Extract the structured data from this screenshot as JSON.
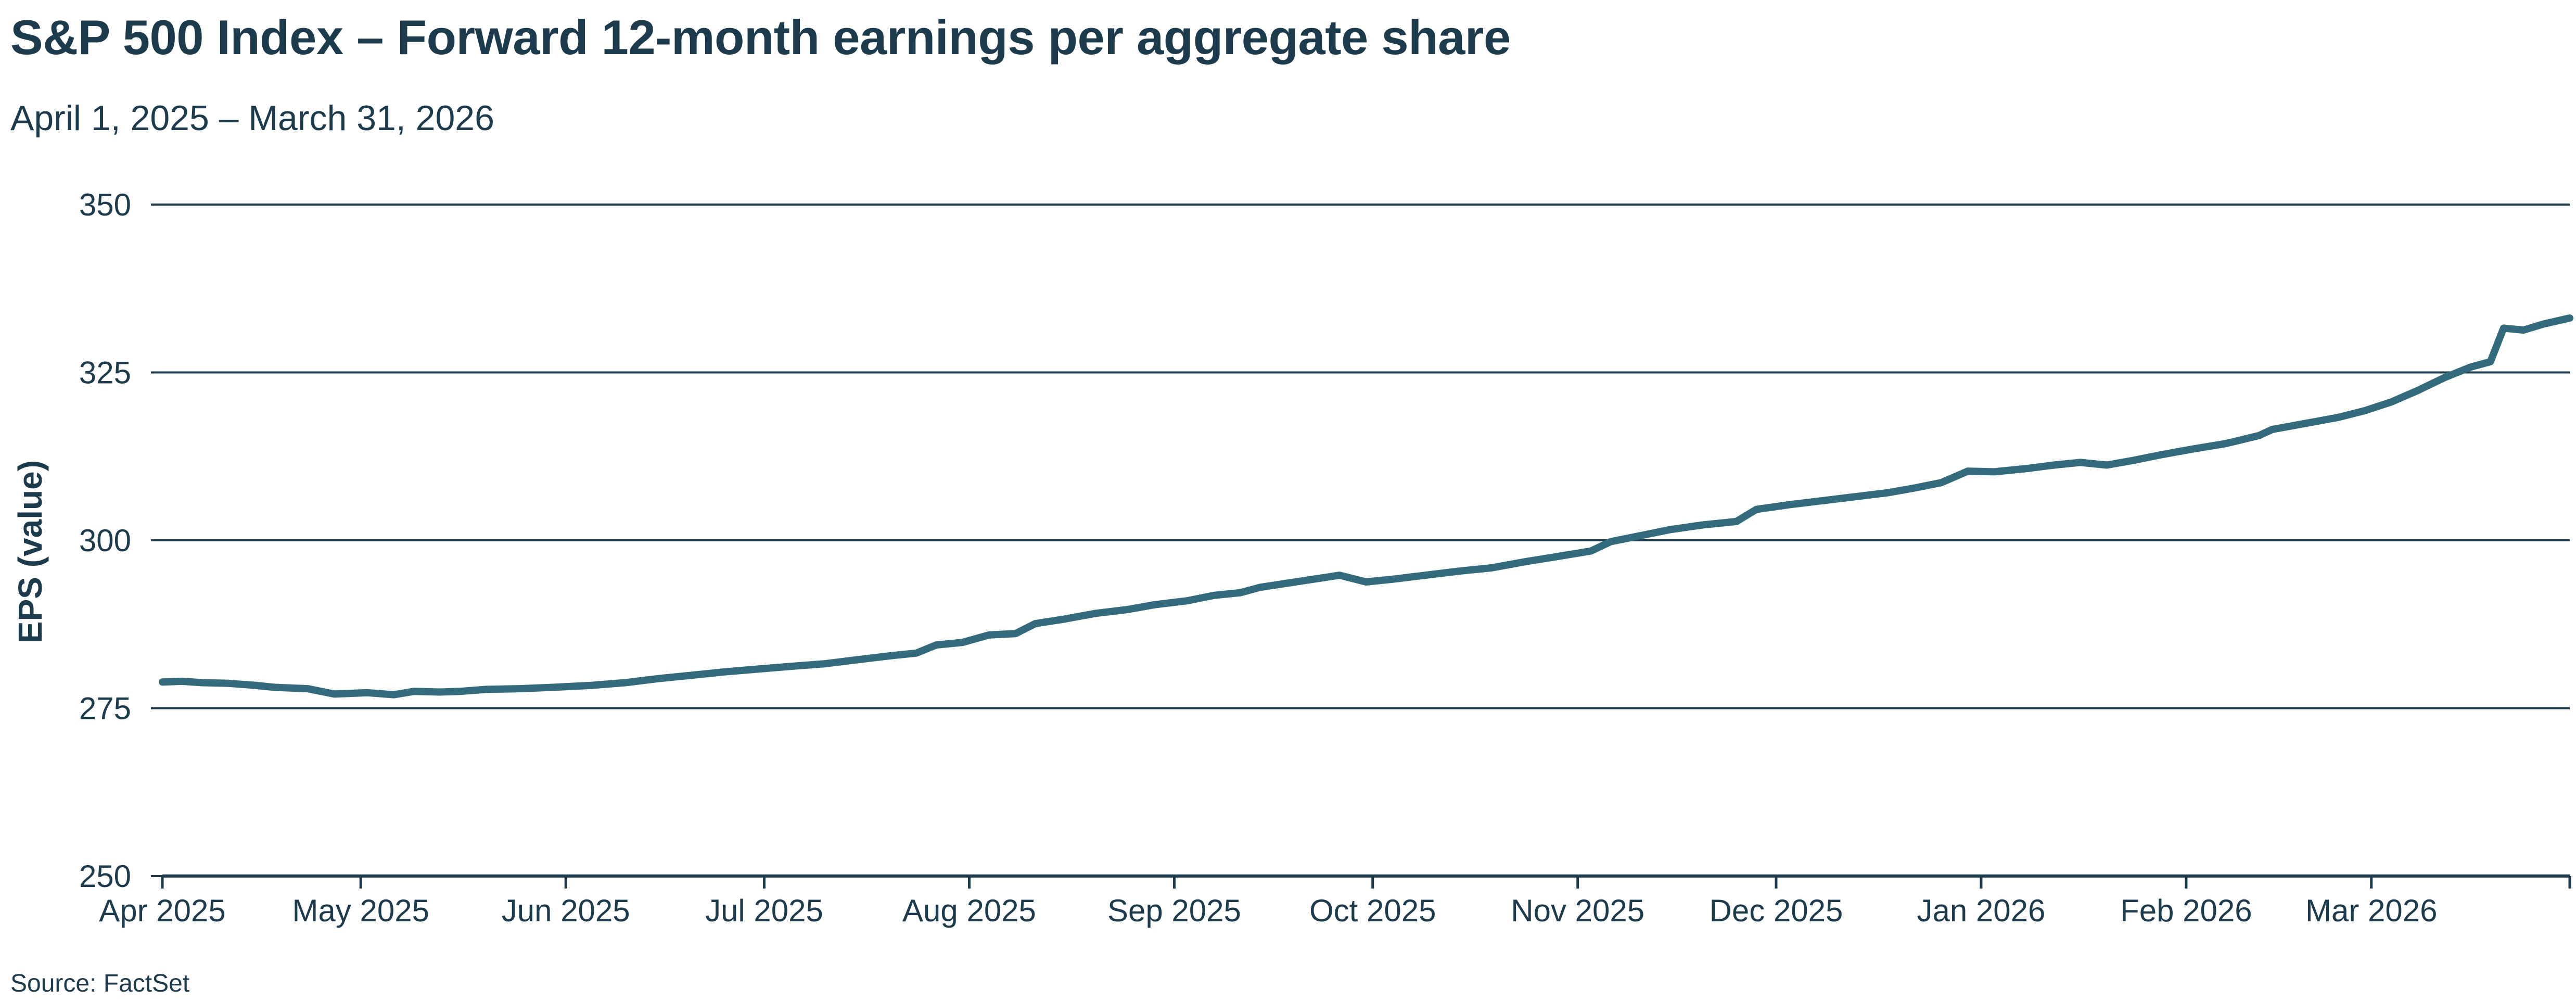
{
  "chart_data": {
    "type": "line",
    "title": "S&P 500 Index – Forward 12-month earnings per aggregate share",
    "subtitle": "April 1, 2025 – March 31, 2026",
    "ylabel": "EPS (value)",
    "xlabel": "",
    "source": "Source: FactSet",
    "ylim": [
      250,
      350
    ],
    "yticks": [
      "250",
      "275",
      "300",
      "325",
      "350"
    ],
    "xlim": [
      "2025-04-01",
      "2026-03-31"
    ],
    "xticks": [
      {
        "date": "2025-04-01",
        "label": "Apr 2025"
      },
      {
        "date": "2025-05-01",
        "label": "May 2025"
      },
      {
        "date": "2025-06-01",
        "label": "Jun 2025"
      },
      {
        "date": "2025-07-01",
        "label": "Jul 2025"
      },
      {
        "date": "2025-08-01",
        "label": "Aug 2025"
      },
      {
        "date": "2025-09-01",
        "label": "Sep 2025"
      },
      {
        "date": "2025-10-01",
        "label": "Oct 2025"
      },
      {
        "date": "2025-11-01",
        "label": "Nov 2025"
      },
      {
        "date": "2025-12-01",
        "label": "Dec 2025"
      },
      {
        "date": "2026-01-01",
        "label": "Jan 2026"
      },
      {
        "date": "2026-02-01",
        "label": "Feb 2026"
      },
      {
        "date": "2026-03-01",
        "label": "Mar 2026"
      }
    ],
    "grid": "horizontal",
    "colors": {
      "line": "#336b7c",
      "grid": "#1c3b4d",
      "text": "#1c3b4d"
    },
    "series": [
      {
        "points": [
          [
            "2025-04-01",
            278.9
          ],
          [
            "2025-04-04",
            279.0
          ],
          [
            "2025-04-07",
            278.8
          ],
          [
            "2025-04-11",
            278.7
          ],
          [
            "2025-04-15",
            278.4
          ],
          [
            "2025-04-18",
            278.1
          ],
          [
            "2025-04-23",
            277.9
          ],
          [
            "2025-04-27",
            277.1
          ],
          [
            "2025-05-02",
            277.3
          ],
          [
            "2025-05-06",
            277.0
          ],
          [
            "2025-05-09",
            277.5
          ],
          [
            "2025-05-13",
            277.4
          ],
          [
            "2025-05-16",
            277.5
          ],
          [
            "2025-05-20",
            277.8
          ],
          [
            "2025-05-25",
            277.9
          ],
          [
            "2025-05-30",
            278.1
          ],
          [
            "2025-06-05",
            278.4
          ],
          [
            "2025-06-10",
            278.8
          ],
          [
            "2025-06-15",
            279.4
          ],
          [
            "2025-06-20",
            279.9
          ],
          [
            "2025-06-25",
            280.4
          ],
          [
            "2025-07-01",
            280.9
          ],
          [
            "2025-07-06",
            281.3
          ],
          [
            "2025-07-10",
            281.6
          ],
          [
            "2025-07-15",
            282.2
          ],
          [
            "2025-07-20",
            282.8
          ],
          [
            "2025-07-24",
            283.2
          ],
          [
            "2025-07-27",
            284.4
          ],
          [
            "2025-07-31",
            284.8
          ],
          [
            "2025-08-04",
            285.9
          ],
          [
            "2025-08-08",
            286.1
          ],
          [
            "2025-08-11",
            287.6
          ],
          [
            "2025-08-15",
            288.2
          ],
          [
            "2025-08-20",
            289.1
          ],
          [
            "2025-08-25",
            289.7
          ],
          [
            "2025-08-29",
            290.4
          ],
          [
            "2025-09-03",
            291.0
          ],
          [
            "2025-09-07",
            291.8
          ],
          [
            "2025-09-11",
            292.2
          ],
          [
            "2025-09-14",
            293.0
          ],
          [
            "2025-09-18",
            293.6
          ],
          [
            "2025-09-22",
            294.2
          ],
          [
            "2025-09-26",
            294.8
          ],
          [
            "2025-09-30",
            293.8
          ],
          [
            "2025-10-04",
            294.2
          ],
          [
            "2025-10-09",
            294.8
          ],
          [
            "2025-10-14",
            295.4
          ],
          [
            "2025-10-19",
            295.9
          ],
          [
            "2025-10-24",
            296.8
          ],
          [
            "2025-10-29",
            297.6
          ],
          [
            "2025-11-03",
            298.4
          ],
          [
            "2025-11-06",
            299.8
          ],
          [
            "2025-11-10",
            300.6
          ],
          [
            "2025-11-15",
            301.6
          ],
          [
            "2025-11-20",
            302.3
          ],
          [
            "2025-11-25",
            302.8
          ],
          [
            "2025-11-28",
            304.6
          ],
          [
            "2025-12-03",
            305.3
          ],
          [
            "2025-12-08",
            305.9
          ],
          [
            "2025-12-13",
            306.5
          ],
          [
            "2025-12-18",
            307.1
          ],
          [
            "2025-12-22",
            307.8
          ],
          [
            "2025-12-26",
            308.6
          ],
          [
            "2025-12-30",
            310.3
          ],
          [
            "2026-01-03",
            310.2
          ],
          [
            "2026-01-08",
            310.7
          ],
          [
            "2026-01-12",
            311.2
          ],
          [
            "2026-01-16",
            311.6
          ],
          [
            "2026-01-20",
            311.2
          ],
          [
            "2026-01-24",
            311.9
          ],
          [
            "2026-01-28",
            312.7
          ],
          [
            "2026-02-02",
            313.6
          ],
          [
            "2026-02-07",
            314.4
          ],
          [
            "2026-02-12",
            315.6
          ],
          [
            "2026-02-14",
            316.5
          ],
          [
            "2026-02-19",
            317.4
          ],
          [
            "2026-02-24",
            318.3
          ],
          [
            "2026-02-28",
            319.3
          ],
          [
            "2026-03-04",
            320.6
          ],
          [
            "2026-03-08",
            322.3
          ],
          [
            "2026-03-12",
            324.2
          ],
          [
            "2026-03-16",
            325.8
          ],
          [
            "2026-03-19",
            326.6
          ],
          [
            "2026-03-21",
            331.6
          ],
          [
            "2026-03-24",
            331.3
          ],
          [
            "2026-03-27",
            332.2
          ],
          [
            "2026-03-31",
            333.1
          ]
        ]
      }
    ]
  }
}
